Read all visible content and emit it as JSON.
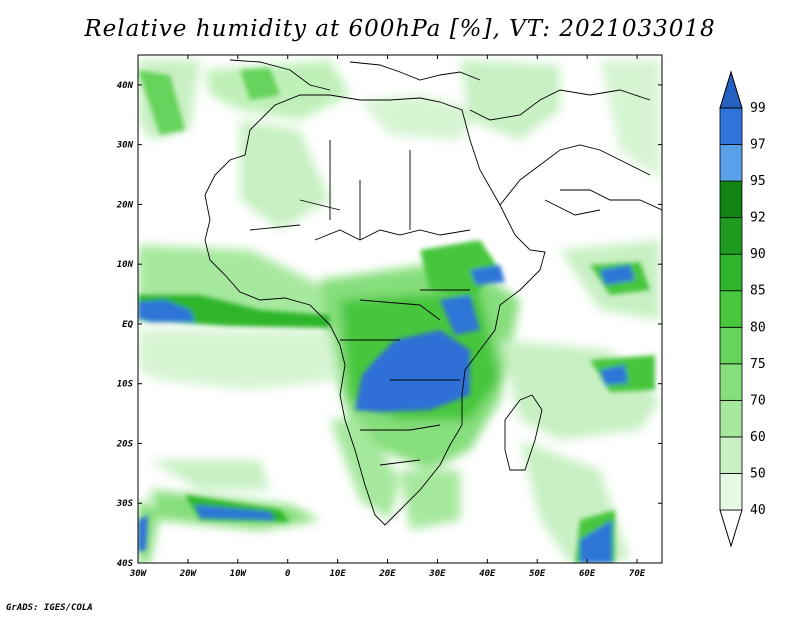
{
  "title": "Relative humidity at 600hPa [%], VT: 2021033018",
  "credit": "GrADS: IGES/COLA",
  "map": {
    "lon_range": [
      -30,
      75
    ],
    "lat_range": [
      -40,
      45
    ],
    "lon_ticks": [
      "30W",
      "20W",
      "10W",
      "0",
      "10E",
      "20E",
      "30E",
      "40E",
      "50E",
      "60E",
      "70E"
    ],
    "lat_ticks": [
      "40N",
      "30N",
      "20N",
      "10N",
      "EQ",
      "10S",
      "20S",
      "30S",
      "40S"
    ],
    "variable": "relative humidity",
    "level": "600hPa",
    "units": "%"
  },
  "colorbar": {
    "labels": [
      "40",
      "50",
      "60",
      "70",
      "75",
      "80",
      "85",
      "90",
      "92",
      "95",
      "97",
      "99"
    ],
    "colors": [
      "#ffffff",
      "#e6f9e4",
      "#c8f0c3",
      "#a6e89e",
      "#86de7c",
      "#66d35c",
      "#47c63e",
      "#2fb52b",
      "#1f9b1f",
      "#138313",
      "#5aa0e8",
      "#2f74d8",
      "#2461c0"
    ]
  },
  "colors": {
    "land_outline": "#000000",
    "very_moist": "#2f6fd6",
    "moist_green": "#2fb52b",
    "light_green": "#bff0b8"
  }
}
